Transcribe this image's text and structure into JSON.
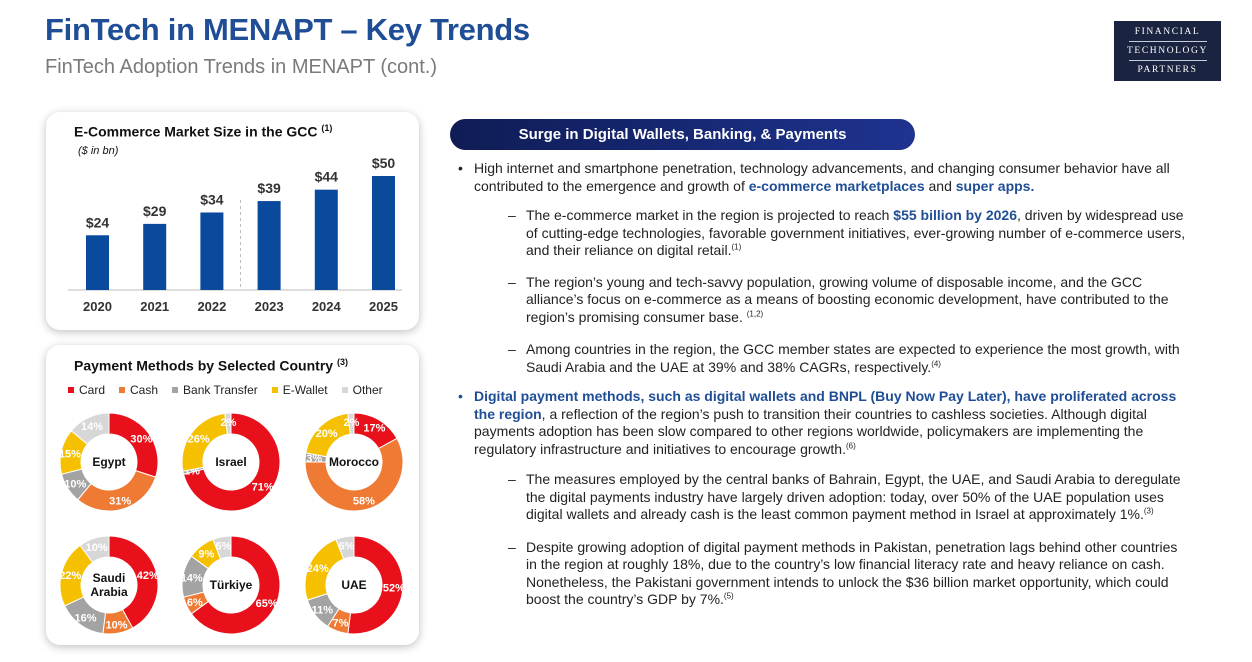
{
  "header": {
    "title": "FinTech in MENAPT – Key Trends",
    "subtitle": "FinTech Adoption Trends in MENAPT (cont.)"
  },
  "logo": {
    "line1": "FINANCIAL",
    "line2": "TECHNOLOGY",
    "line3": "PARTNERS"
  },
  "chart_data": [
    {
      "type": "bar",
      "title": "E-Commerce Market Size in the GCC",
      "title_note": "(1)",
      "unit": "($ in bn)",
      "categories": [
        "2020",
        "2021",
        "2022",
        "2023",
        "2024",
        "2025"
      ],
      "values": [
        24,
        29,
        34,
        39,
        44,
        50
      ],
      "value_labels": [
        "$24",
        "$29",
        "$34",
        "$39",
        "$44",
        "$50"
      ],
      "ylim": [
        0,
        50
      ],
      "color": "#0a4a9c",
      "divider_after_index": 2
    },
    {
      "type": "pie",
      "title": "Payment Methods by Selected Country",
      "title_note": "(3)",
      "legend": [
        "Card",
        "Cash",
        "Bank Transfer",
        "E-Wallet",
        "Other"
      ],
      "colors": [
        "#e8111b",
        "#ef7a33",
        "#a3a3a3",
        "#f5c000",
        "#d7d7d7"
      ],
      "countries": [
        {
          "name": [
            "Egypt"
          ],
          "values": [
            30,
            31,
            10,
            15,
            14
          ],
          "labels": [
            "30%",
            "31%",
            "10%",
            "15%",
            "14%"
          ]
        },
        {
          "name": [
            "Israel"
          ],
          "values": [
            71,
            0,
            1,
            26,
            2
          ],
          "labels": [
            "71%",
            "",
            "1%",
            "26%",
            "2%"
          ]
        },
        {
          "name": [
            "Morocco"
          ],
          "values": [
            17,
            58,
            3,
            20,
            2
          ],
          "labels": [
            "17%",
            "58%",
            "3%",
            "20%",
            "2%"
          ]
        },
        {
          "name": [
            "Saudi",
            "Arabia"
          ],
          "values": [
            42,
            10,
            16,
            22,
            10
          ],
          "labels": [
            "42%",
            "10%",
            "16%",
            "22%",
            "10%"
          ]
        },
        {
          "name": [
            "Türkiye"
          ],
          "values": [
            65,
            6,
            14,
            9,
            6
          ],
          "labels": [
            "65%",
            "6%",
            "14%",
            "9%",
            "6%"
          ]
        },
        {
          "name": [
            "UAE"
          ],
          "values": [
            52,
            7,
            11,
            24,
            6
          ],
          "labels": [
            "52%",
            "7%",
            "11%",
            "24%",
            "6%"
          ]
        }
      ]
    }
  ],
  "section": {
    "pill": "Surge in Digital Wallets, Banking, & Payments",
    "p1_a": "High internet and smartphone penetration, technology advancements, and changing consumer behavior have all contributed to the emergence and growth of ",
    "p1_hl1": "e-commerce marketplaces",
    "p1_b": " and ",
    "p1_hl2": "super apps.",
    "s1_a": "The e-commerce market in the region is projected to reach ",
    "s1_hl": "$55 billion by 2026",
    "s1_b": ", driven by widespread use of cutting-edge technologies, favorable government initiatives, ever-growing number of e-commerce users, and their reliance on digital retail.",
    "s1_sup": "(1)",
    "s2": "The region’s young and tech-savvy population, growing volume of disposable income, and the GCC alliance’s focus on e-commerce as a means of boosting economic development, have contributed to the region’s promising consumer base. ",
    "s2_sup": "(1,2)",
    "s3": "Among countries in the region, the GCC member states are expected to experience the most growth, with Saudi Arabia and the UAE at 39% and 38% CAGRs, respectively.",
    "s3_sup": "(4)",
    "p2_hl": "Digital payment methods, such as digital wallets and BNPL (Buy Now Pay Later), have proliferated across the region",
    "p2_b": ", a reflection of the region’s push to transition their countries to cashless societies. Although digital payments adoption has been slow compared to other regions worldwide, policymakers are implementing the regulatory infrastructure and initiatives to encourage growth.",
    "p2_sup": "(6)",
    "s4": "The measures employed by the central banks of Bahrain, Egypt, the UAE, and Saudi Arabia to deregulate the digital payments industry have largely driven adoption: today, over 50% of the UAE population uses digital wallets and already cash is the least common payment method in Israel at approximately 1%.",
    "s4_sup": "(3)",
    "s5": "Despite growing adoption of digital payment methods in Pakistan, penetration lags behind other countries in the region at roughly 18%, due to the country’s low financial literacy rate and heavy reliance on cash. Nonetheless, the Pakistani government intends to unlock the $36 billion market opportunity, which could boost the country’s GDP by 7%.",
    "s5_sup": "(5)"
  }
}
